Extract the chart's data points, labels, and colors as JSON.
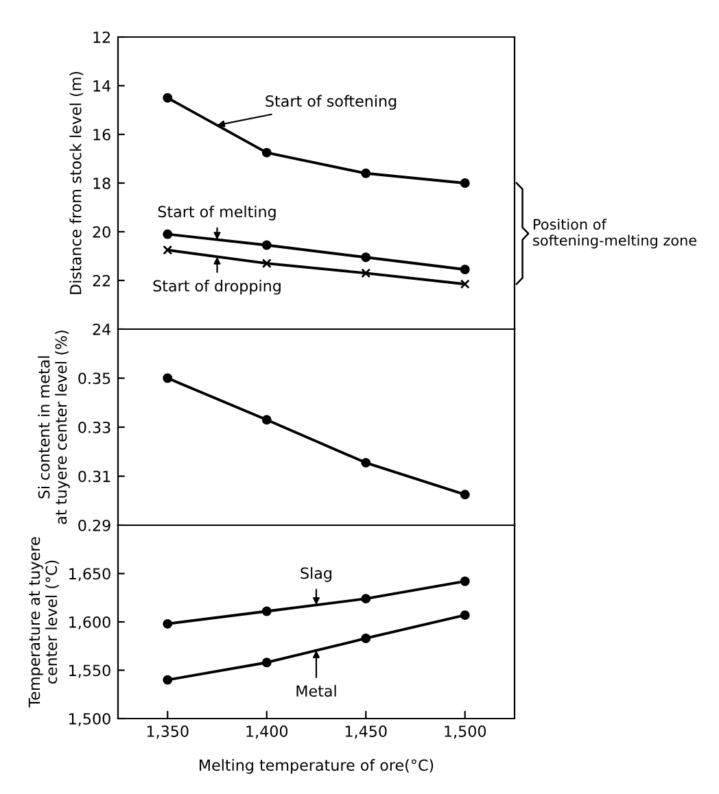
{
  "chart_data": [
    {
      "type": "line",
      "ylabel": "Distance from stock level (m)",
      "xlim": [
        1325,
        1525
      ],
      "ylim": [
        24,
        12
      ],
      "yticks": [
        12,
        14,
        16,
        18,
        20,
        22,
        24
      ],
      "tick_labels": "y",
      "x": [
        1350,
        1400,
        1450,
        1500
      ],
      "series": [
        {
          "name": "Start of softening",
          "color": "#000000",
          "marker": "circle",
          "values": [
            14.5,
            16.75,
            17.6,
            18.0
          ]
        },
        {
          "name": "Start of melting",
          "color": "#000000",
          "marker": "circle",
          "values": [
            20.1,
            20.55,
            21.05,
            21.55
          ]
        },
        {
          "name": "Start of dropping",
          "color": "#000000",
          "marker": "cross",
          "values": [
            20.75,
            21.3,
            21.7,
            22.15
          ]
        }
      ],
      "annotations": [
        "Position of\nsoftening-melting zone"
      ]
    },
    {
      "type": "line",
      "ylabel": "Si content in metal\nat tuyere center level (%)",
      "xlim": [
        1325,
        1525
      ],
      "ylim": [
        0.29,
        0.37
      ],
      "yticks": [
        0.29,
        0.31,
        0.33,
        0.35
      ],
      "tick_labels": "y",
      "x": [
        1350,
        1400,
        1450,
        1500
      ],
      "series": [
        {
          "color": "#000000",
          "marker": "circle",
          "values": [
            0.35,
            0.333,
            0.3155,
            0.3025
          ]
        }
      ]
    },
    {
      "type": "line",
      "xlabel": "Melting temperature of ore(°C)",
      "ylabel": "Temperature at tuyere\ncenter level (°C)",
      "xlim": [
        1325,
        1525
      ],
      "xticks": [
        {
          "value": 1350,
          "label": "1,350"
        },
        {
          "value": 1400,
          "label": "1,400"
        },
        {
          "value": 1450,
          "label": "1,450"
        },
        {
          "value": 1500,
          "label": "1,500"
        }
      ],
      "ylim": [
        1500,
        1700
      ],
      "yticks": [
        {
          "value": 1500,
          "label": "1,500"
        },
        {
          "value": 1550,
          "label": "1,550"
        },
        {
          "value": 1600,
          "label": "1,600"
        },
        {
          "value": 1650,
          "label": "1,650"
        }
      ],
      "x": [
        1350,
        1400,
        1450,
        1500
      ],
      "series": [
        {
          "name": "Slag",
          "color": "#000000",
          "marker": "circle",
          "values": [
            1598,
            1611,
            1624,
            1642
          ]
        },
        {
          "name": "Metal",
          "color": "#000000",
          "marker": "circle",
          "values": [
            1540,
            1558,
            1583,
            1607
          ]
        }
      ]
    }
  ]
}
